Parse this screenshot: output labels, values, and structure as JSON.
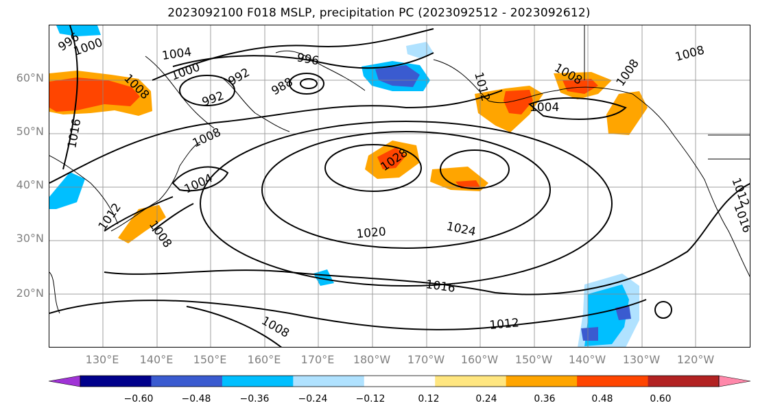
{
  "title": "2023092100 F018 MSLP, precipitation PC (2023092512 - 2023092612)",
  "lat_labels": [
    "60°N",
    "50°N",
    "40°N",
    "30°N",
    "20°N"
  ],
  "lon_labels": [
    "130°E",
    "140°E",
    "150°E",
    "160°E",
    "170°E",
    "180°W",
    "170°W",
    "160°W",
    "150°W",
    "140°W",
    "130°W",
    "120°W"
  ],
  "contour_labels": [
    "996",
    "1000",
    "1004",
    "1000",
    "1008",
    "992",
    "996",
    "988",
    "992",
    "1016",
    "1008",
    "1004",
    "1012",
    "1008",
    "1028",
    "1020",
    "1024",
    "1016",
    "1012",
    "1008",
    "1012",
    "1008",
    "1004",
    "1008",
    "1008",
    "1012",
    "1016"
  ],
  "colorbar": {
    "ticks": [
      "−0.60",
      "−0.48",
      "−0.36",
      "−0.24",
      "−0.12",
      "0.12",
      "0.24",
      "0.36",
      "0.48",
      "0.60"
    ],
    "colors": [
      "#a033d6",
      "#00008b",
      "#3a5bd0",
      "#00bfff",
      "#b0e2ff",
      "#ffffff",
      "#ffe680",
      "#ffa500",
      "#ff4500",
      "#b22222",
      "#ff88aa"
    ]
  }
}
